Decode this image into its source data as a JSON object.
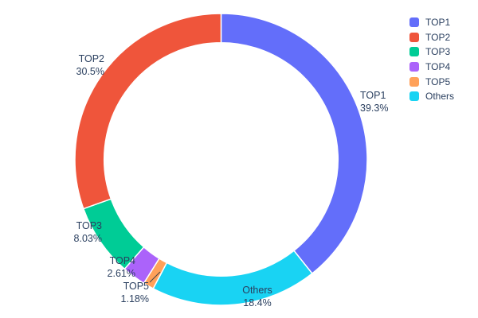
{
  "chart_data": {
    "type": "pie",
    "hole": 0.8,
    "title": "",
    "categories": [
      "TOP1",
      "TOP2",
      "TOP3",
      "TOP4",
      "TOP5",
      "Others"
    ],
    "values": [
      39.3,
      30.5,
      8.03,
      2.61,
      1.18,
      18.4
    ],
    "percent_labels": [
      "39.3%",
      "30.5%",
      "8.03%",
      "2.61%",
      "1.18%",
      "18.4%"
    ],
    "colors": [
      "#636efa",
      "#ef553b",
      "#00cc96",
      "#ab63fa",
      "#ffa15a",
      "#19d3f3"
    ],
    "legend_labels": [
      "TOP1",
      "TOP2",
      "TOP3",
      "TOP4",
      "TOP5",
      "Others"
    ],
    "legend_position": "top-right",
    "clockwise_order_from_top": [
      "TOP1",
      "Others",
      "TOP5",
      "TOP4",
      "TOP3",
      "TOP2"
    ],
    "text_color": "#2a3f5f",
    "background_color": "#ffffff"
  }
}
